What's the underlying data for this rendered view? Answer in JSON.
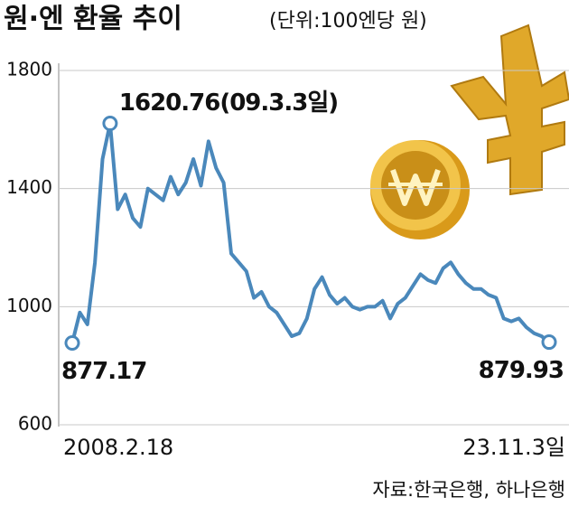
{
  "chart_data": {
    "type": "line",
    "title": "원·엔 환율 추이",
    "subtitle": "(단위:100엔당 원)",
    "source": "자료:한국은행, 하나은행",
    "categories": [
      "2008.2.18",
      null,
      null,
      null,
      null,
      null,
      null,
      null,
      null,
      null,
      null,
      null,
      null,
      null,
      null,
      null,
      null,
      null,
      null,
      null,
      null,
      null,
      null,
      null,
      null,
      null,
      null,
      null,
      null,
      null,
      null,
      null,
      null,
      null,
      null,
      null,
      null,
      null,
      null,
      null,
      null,
      null,
      null,
      null,
      null,
      null,
      null,
      null,
      null,
      null,
      null,
      null,
      null,
      null,
      null,
      null,
      null,
      null,
      null,
      null,
      null,
      null,
      null,
      "23.11.3일"
    ],
    "series": [
      {
        "name": null,
        "color": "#4a88bb",
        "values": [
          877.17,
          980,
          940,
          1150,
          1500,
          1620.76,
          1330,
          1380,
          1300,
          1270,
          1400,
          1380,
          1360,
          1440,
          1380,
          1420,
          1500,
          1410,
          1560,
          1470,
          1420,
          1180,
          1150,
          1120,
          1030,
          1050,
          1000,
          980,
          940,
          900,
          910,
          960,
          1060,
          1100,
          1040,
          1010,
          1030,
          1000,
          990,
          1000,
          1000,
          1020,
          960,
          1010,
          1030,
          1070,
          1110,
          1090,
          1080,
          1130,
          1150,
          1110,
          1080,
          1060,
          1060,
          1040,
          1030,
          960,
          950,
          960,
          930,
          910,
          900,
          879.93
        ],
        "value_labels": [
          "877.17",
          null,
          null,
          null,
          null,
          "1620.76(09.3.3일)",
          null,
          null,
          null,
          null,
          null,
          null,
          null,
          null,
          null,
          null,
          null,
          null,
          null,
          null,
          null,
          null,
          null,
          null,
          null,
          null,
          null,
          null,
          null,
          null,
          null,
          null,
          null,
          null,
          null,
          null,
          null,
          null,
          null,
          null,
          null,
          null,
          null,
          null,
          null,
          null,
          null,
          null,
          null,
          null,
          null,
          null,
          null,
          null,
          null,
          null,
          null,
          null,
          null,
          null,
          null,
          null,
          null,
          "879.93"
        ]
      }
    ],
    "ylim": [
      600,
      1800
    ],
    "yticks": [
      600,
      1000,
      1400,
      1800
    ],
    "grid": true
  }
}
